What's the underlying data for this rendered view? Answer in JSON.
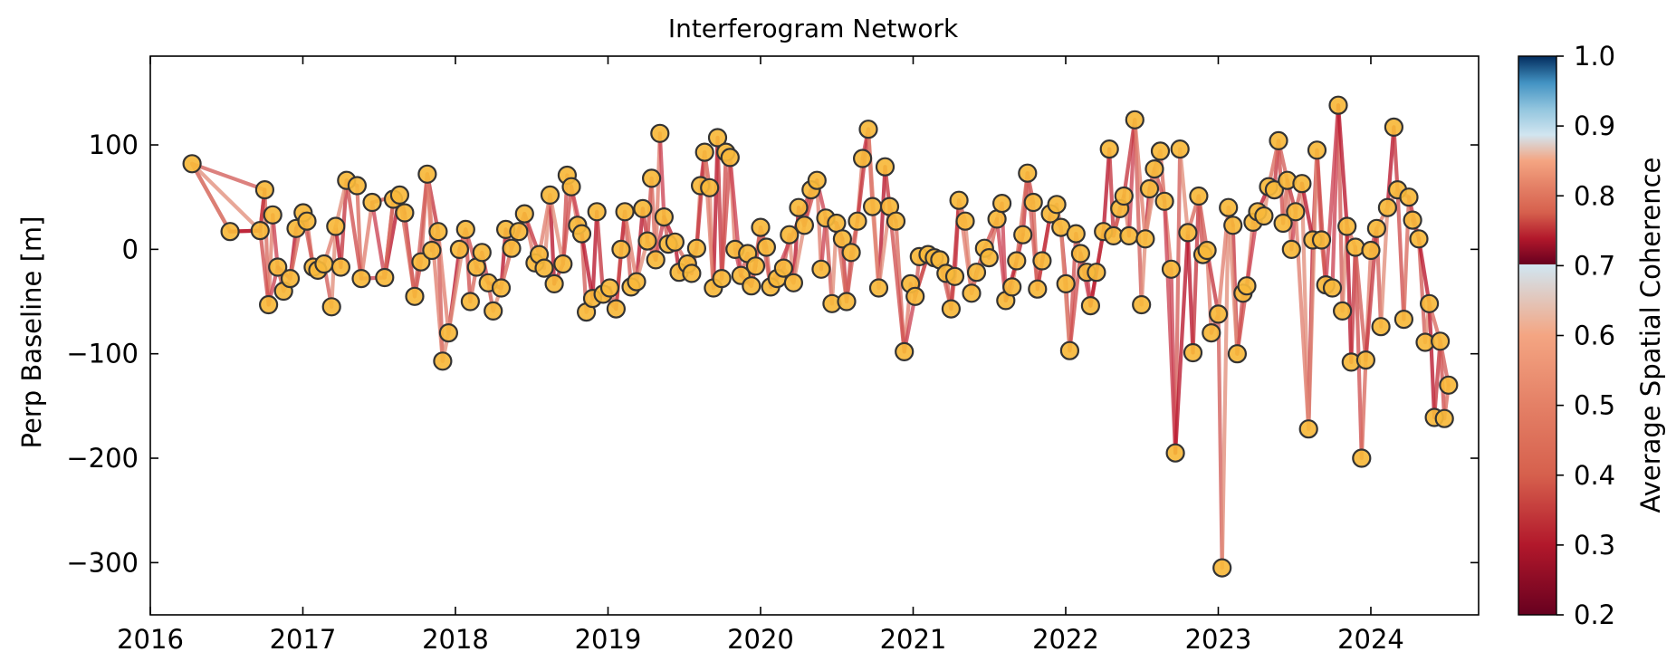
{
  "chart_data": {
    "type": "scatter",
    "title": "Interferogram Network",
    "xlabel": "",
    "ylabel": "Perp Baseline [m]",
    "xlim": [
      "2016-01-01",
      "2024-09-15"
    ],
    "ylim": [
      -350,
      185
    ],
    "x_ticks": [
      "2016",
      "2017",
      "2018",
      "2019",
      "2020",
      "2021",
      "2022",
      "2023",
      "2024"
    ],
    "y_ticks": [
      100,
      0,
      -100,
      -200,
      -300
    ],
    "y_tick_labels": [
      "100",
      "0",
      "−100",
      "−200",
      "−300"
    ],
    "grid": false,
    "legend": "none",
    "colorbar": {
      "label": "Average Spatial Coherence",
      "min": 0.2,
      "max": 1.0,
      "ticks": [
        1.0,
        0.9,
        0.8,
        0.7,
        0.6,
        0.5,
        0.4,
        0.3,
        0.2
      ],
      "tick_labels": [
        "1.0",
        "0.9",
        "0.8",
        "0.7",
        "0.6",
        "0.5",
        "0.4",
        "0.3",
        "0.2"
      ],
      "colormap": "RdBu",
      "visible_range": [
        0.2,
        0.7
      ],
      "colors": [
        "#67001f",
        "#b2182b",
        "#d6604d",
        "#f4a582",
        "#d1e5f0",
        "#92c5de",
        "#4393c3",
        "#2166ac",
        "#053061"
      ]
    },
    "marker_color": "#f7b93b",
    "marker_edge_color": "#333333",
    "acquisitions": [
      {
        "date": "2016-04-10",
        "bperp": 82
      },
      {
        "date": "2016-07-10",
        "bperp": 17
      },
      {
        "date": "2016-09-20",
        "bperp": 18
      },
      {
        "date": "2016-10-01",
        "bperp": 57
      },
      {
        "date": "2016-10-10",
        "bperp": -53
      },
      {
        "date": "2016-10-20",
        "bperp": 33
      },
      {
        "date": "2016-11-01",
        "bperp": -17
      },
      {
        "date": "2016-11-15",
        "bperp": -40
      },
      {
        "date": "2016-12-01",
        "bperp": -28
      },
      {
        "date": "2016-12-15",
        "bperp": 20
      },
      {
        "date": "2017-01-01",
        "bperp": 35
      },
      {
        "date": "2017-01-10",
        "bperp": 27
      },
      {
        "date": "2017-01-25",
        "bperp": -17
      },
      {
        "date": "2017-02-05",
        "bperp": -20
      },
      {
        "date": "2017-02-20",
        "bperp": -14
      },
      {
        "date": "2017-03-10",
        "bperp": -55
      },
      {
        "date": "2017-03-20",
        "bperp": 22
      },
      {
        "date": "2017-04-01",
        "bperp": -17
      },
      {
        "date": "2017-04-15",
        "bperp": 66
      },
      {
        "date": "2017-05-10",
        "bperp": 61
      },
      {
        "date": "2017-05-20",
        "bperp": -28
      },
      {
        "date": "2017-06-15",
        "bperp": 45
      },
      {
        "date": "2017-07-15",
        "bperp": -27
      },
      {
        "date": "2017-08-05",
        "bperp": 48
      },
      {
        "date": "2017-08-20",
        "bperp": 52
      },
      {
        "date": "2017-09-01",
        "bperp": 35
      },
      {
        "date": "2017-09-25",
        "bperp": -45
      },
      {
        "date": "2017-10-10",
        "bperp": -12
      },
      {
        "date": "2017-10-25",
        "bperp": 72
      },
      {
        "date": "2017-11-05",
        "bperp": -1
      },
      {
        "date": "2017-11-20",
        "bperp": 17
      },
      {
        "date": "2017-12-01",
        "bperp": -107
      },
      {
        "date": "2017-12-15",
        "bperp": -80
      },
      {
        "date": "2018-01-10",
        "bperp": 0
      },
      {
        "date": "2018-01-25",
        "bperp": 19
      },
      {
        "date": "2018-02-05",
        "bperp": -50
      },
      {
        "date": "2018-02-20",
        "bperp": -17
      },
      {
        "date": "2018-03-05",
        "bperp": -3
      },
      {
        "date": "2018-03-20",
        "bperp": -32
      },
      {
        "date": "2018-04-01",
        "bperp": -59
      },
      {
        "date": "2018-04-20",
        "bperp": -37
      },
      {
        "date": "2018-05-01",
        "bperp": 19
      },
      {
        "date": "2018-05-15",
        "bperp": 1
      },
      {
        "date": "2018-06-01",
        "bperp": 17
      },
      {
        "date": "2018-06-15",
        "bperp": 34
      },
      {
        "date": "2018-07-10",
        "bperp": -13
      },
      {
        "date": "2018-07-20",
        "bperp": -5
      },
      {
        "date": "2018-08-01",
        "bperp": -18
      },
      {
        "date": "2018-08-15",
        "bperp": 52
      },
      {
        "date": "2018-08-25",
        "bperp": -33
      },
      {
        "date": "2018-09-15",
        "bperp": -14
      },
      {
        "date": "2018-09-25",
        "bperp": 71
      },
      {
        "date": "2018-10-05",
        "bperp": 60
      },
      {
        "date": "2018-10-20",
        "bperp": 23
      },
      {
        "date": "2018-10-30",
        "bperp": 15
      },
      {
        "date": "2018-11-10",
        "bperp": -60
      },
      {
        "date": "2018-11-25",
        "bperp": -47
      },
      {
        "date": "2018-12-05",
        "bperp": 36
      },
      {
        "date": "2018-12-20",
        "bperp": -43
      },
      {
        "date": "2019-01-05",
        "bperp": -37
      },
      {
        "date": "2019-01-20",
        "bperp": -57
      },
      {
        "date": "2019-02-01",
        "bperp": 0
      },
      {
        "date": "2019-02-10",
        "bperp": 36
      },
      {
        "date": "2019-02-25",
        "bperp": -36
      },
      {
        "date": "2019-03-10",
        "bperp": -31
      },
      {
        "date": "2019-03-25",
        "bperp": 39
      },
      {
        "date": "2019-04-05",
        "bperp": 8
      },
      {
        "date": "2019-04-15",
        "bperp": 68
      },
      {
        "date": "2019-04-25",
        "bperp": -10
      },
      {
        "date": "2019-05-05",
        "bperp": 111
      },
      {
        "date": "2019-05-15",
        "bperp": 31
      },
      {
        "date": "2019-05-25",
        "bperp": 5
      },
      {
        "date": "2019-06-10",
        "bperp": 7
      },
      {
        "date": "2019-06-20",
        "bperp": -22
      },
      {
        "date": "2019-07-10",
        "bperp": -14
      },
      {
        "date": "2019-07-20",
        "bperp": -23
      },
      {
        "date": "2019-08-01",
        "bperp": 1
      },
      {
        "date": "2019-08-10",
        "bperp": 61
      },
      {
        "date": "2019-08-20",
        "bperp": 93
      },
      {
        "date": "2019-09-01",
        "bperp": 59
      },
      {
        "date": "2019-09-10",
        "bperp": -37
      },
      {
        "date": "2019-09-20",
        "bperp": 107
      },
      {
        "date": "2019-09-30",
        "bperp": -28
      },
      {
        "date": "2019-10-10",
        "bperp": 93
      },
      {
        "date": "2019-10-20",
        "bperp": 88
      },
      {
        "date": "2019-11-01",
        "bperp": 0
      },
      {
        "date": "2019-11-15",
        "bperp": -25
      },
      {
        "date": "2019-12-01",
        "bperp": -4
      },
      {
        "date": "2019-12-10",
        "bperp": -35
      },
      {
        "date": "2019-12-20",
        "bperp": -16
      },
      {
        "date": "2020-01-01",
        "bperp": 21
      },
      {
        "date": "2020-01-15",
        "bperp": 2
      },
      {
        "date": "2020-01-25",
        "bperp": -36
      },
      {
        "date": "2020-02-10",
        "bperp": -28
      },
      {
        "date": "2020-02-25",
        "bperp": -18
      },
      {
        "date": "2020-03-10",
        "bperp": 14
      },
      {
        "date": "2020-03-20",
        "bperp": -32
      },
      {
        "date": "2020-04-01",
        "bperp": 40
      },
      {
        "date": "2020-04-15",
        "bperp": 23
      },
      {
        "date": "2020-05-01",
        "bperp": 57
      },
      {
        "date": "2020-05-15",
        "bperp": 66
      },
      {
        "date": "2020-05-25",
        "bperp": -19
      },
      {
        "date": "2020-06-05",
        "bperp": 30
      },
      {
        "date": "2020-06-20",
        "bperp": -52
      },
      {
        "date": "2020-07-01",
        "bperp": 25
      },
      {
        "date": "2020-07-15",
        "bperp": 10
      },
      {
        "date": "2020-07-25",
        "bperp": -50
      },
      {
        "date": "2020-08-05",
        "bperp": -3
      },
      {
        "date": "2020-08-20",
        "bperp": 27
      },
      {
        "date": "2020-09-01",
        "bperp": 87
      },
      {
        "date": "2020-09-15",
        "bperp": 115
      },
      {
        "date": "2020-09-25",
        "bperp": 41
      },
      {
        "date": "2020-10-10",
        "bperp": -37
      },
      {
        "date": "2020-10-25",
        "bperp": 79
      },
      {
        "date": "2020-11-05",
        "bperp": 41
      },
      {
        "date": "2020-11-20",
        "bperp": 27
      },
      {
        "date": "2020-12-10",
        "bperp": -98
      },
      {
        "date": "2020-12-25",
        "bperp": -33
      },
      {
        "date": "2021-01-05",
        "bperp": -45
      },
      {
        "date": "2021-01-15",
        "bperp": -7
      },
      {
        "date": "2021-02-05",
        "bperp": -5
      },
      {
        "date": "2021-02-20",
        "bperp": -8
      },
      {
        "date": "2021-03-05",
        "bperp": -10
      },
      {
        "date": "2021-03-20",
        "bperp": -23
      },
      {
        "date": "2021-04-01",
        "bperp": -57
      },
      {
        "date": "2021-04-10",
        "bperp": -26
      },
      {
        "date": "2021-04-20",
        "bperp": 47
      },
      {
        "date": "2021-05-05",
        "bperp": 27
      },
      {
        "date": "2021-05-20",
        "bperp": -42
      },
      {
        "date": "2021-06-01",
        "bperp": -22
      },
      {
        "date": "2021-06-20",
        "bperp": 1
      },
      {
        "date": "2021-07-01",
        "bperp": -8
      },
      {
        "date": "2021-07-20",
        "bperp": 29
      },
      {
        "date": "2021-08-01",
        "bperp": 44
      },
      {
        "date": "2021-08-10",
        "bperp": -49
      },
      {
        "date": "2021-08-25",
        "bperp": -36
      },
      {
        "date": "2021-09-05",
        "bperp": -11
      },
      {
        "date": "2021-09-20",
        "bperp": 14
      },
      {
        "date": "2021-10-01",
        "bperp": 73
      },
      {
        "date": "2021-10-15",
        "bperp": 45
      },
      {
        "date": "2021-10-25",
        "bperp": -38
      },
      {
        "date": "2021-11-05",
        "bperp": -11
      },
      {
        "date": "2021-11-25",
        "bperp": 34
      },
      {
        "date": "2021-12-10",
        "bperp": 43
      },
      {
        "date": "2021-12-20",
        "bperp": 21
      },
      {
        "date": "2022-01-01",
        "bperp": -33
      },
      {
        "date": "2022-01-10",
        "bperp": -97
      },
      {
        "date": "2022-01-25",
        "bperp": 15
      },
      {
        "date": "2022-02-05",
        "bperp": -4
      },
      {
        "date": "2022-02-20",
        "bperp": -22
      },
      {
        "date": "2022-03-01",
        "bperp": -54
      },
      {
        "date": "2022-03-15",
        "bperp": -22
      },
      {
        "date": "2022-04-01",
        "bperp": 17
      },
      {
        "date": "2022-04-15",
        "bperp": 96
      },
      {
        "date": "2022-04-25",
        "bperp": 13
      },
      {
        "date": "2022-05-10",
        "bperp": 39
      },
      {
        "date": "2022-05-20",
        "bperp": 51
      },
      {
        "date": "2022-06-01",
        "bperp": 13
      },
      {
        "date": "2022-06-15",
        "bperp": 124
      },
      {
        "date": "2022-07-01",
        "bperp": -53
      },
      {
        "date": "2022-07-10",
        "bperp": 10
      },
      {
        "date": "2022-07-20",
        "bperp": 58
      },
      {
        "date": "2022-08-01",
        "bperp": 77
      },
      {
        "date": "2022-08-15",
        "bperp": 94
      },
      {
        "date": "2022-08-25",
        "bperp": 46
      },
      {
        "date": "2022-09-10",
        "bperp": -19
      },
      {
        "date": "2022-09-20",
        "bperp": -195
      },
      {
        "date": "2022-10-01",
        "bperp": 96
      },
      {
        "date": "2022-10-20",
        "bperp": 16
      },
      {
        "date": "2022-11-01",
        "bperp": -99
      },
      {
        "date": "2022-11-15",
        "bperp": 51
      },
      {
        "date": "2022-11-25",
        "bperp": -5
      },
      {
        "date": "2022-12-05",
        "bperp": -1
      },
      {
        "date": "2022-12-15",
        "bperp": -80
      },
      {
        "date": "2023-01-01",
        "bperp": -62
      },
      {
        "date": "2023-01-10",
        "bperp": -305
      },
      {
        "date": "2023-01-25",
        "bperp": 40
      },
      {
        "date": "2023-02-05",
        "bperp": 23
      },
      {
        "date": "2023-02-15",
        "bperp": -100
      },
      {
        "date": "2023-03-01",
        "bperp": -42
      },
      {
        "date": "2023-03-10",
        "bperp": -35
      },
      {
        "date": "2023-03-25",
        "bperp": 26
      },
      {
        "date": "2023-04-05",
        "bperp": 36
      },
      {
        "date": "2023-04-20",
        "bperp": 32
      },
      {
        "date": "2023-05-01",
        "bperp": 60
      },
      {
        "date": "2023-05-15",
        "bperp": 57
      },
      {
        "date": "2023-05-25",
        "bperp": 104
      },
      {
        "date": "2023-06-05",
        "bperp": 25
      },
      {
        "date": "2023-06-15",
        "bperp": 66
      },
      {
        "date": "2023-06-25",
        "bperp": 0
      },
      {
        "date": "2023-07-05",
        "bperp": 36
      },
      {
        "date": "2023-07-20",
        "bperp": 63
      },
      {
        "date": "2023-08-05",
        "bperp": -172
      },
      {
        "date": "2023-08-15",
        "bperp": 9
      },
      {
        "date": "2023-08-25",
        "bperp": 95
      },
      {
        "date": "2023-09-05",
        "bperp": 9
      },
      {
        "date": "2023-09-15",
        "bperp": -34
      },
      {
        "date": "2023-10-01",
        "bperp": -37
      },
      {
        "date": "2023-10-15",
        "bperp": 138
      },
      {
        "date": "2023-10-25",
        "bperp": -59
      },
      {
        "date": "2023-11-05",
        "bperp": 22
      },
      {
        "date": "2023-11-15",
        "bperp": -108
      },
      {
        "date": "2023-11-25",
        "bperp": 2
      },
      {
        "date": "2023-12-10",
        "bperp": -200
      },
      {
        "date": "2023-12-20",
        "bperp": -106
      },
      {
        "date": "2024-01-01",
        "bperp": -1
      },
      {
        "date": "2024-01-15",
        "bperp": 20
      },
      {
        "date": "2024-01-25",
        "bperp": -74
      },
      {
        "date": "2024-02-10",
        "bperp": 40
      },
      {
        "date": "2024-02-25",
        "bperp": 117
      },
      {
        "date": "2024-03-05",
        "bperp": 57
      },
      {
        "date": "2024-03-20",
        "bperp": -67
      },
      {
        "date": "2024-04-01",
        "bperp": 50
      },
      {
        "date": "2024-04-10",
        "bperp": 28
      },
      {
        "date": "2024-04-25",
        "bperp": 10
      },
      {
        "date": "2024-05-10",
        "bperp": -89
      },
      {
        "date": "2024-05-20",
        "bperp": -52
      },
      {
        "date": "2024-06-01",
        "bperp": -161
      },
      {
        "date": "2024-06-15",
        "bperp": -88
      },
      {
        "date": "2024-06-25",
        "bperp": -162
      },
      {
        "date": "2024-07-05",
        "bperp": -130
      }
    ],
    "long_pairs": [
      [
        0,
        3
      ],
      [
        0,
        1
      ],
      [
        1,
        2
      ],
      [
        2,
        3
      ],
      [
        21,
        24
      ],
      [
        22,
        23
      ],
      [
        28,
        31
      ],
      [
        92,
        99
      ],
      [
        118,
        120
      ],
      [
        160,
        163
      ],
      [
        191,
        193
      ],
      [
        233,
        238
      ]
    ]
  }
}
